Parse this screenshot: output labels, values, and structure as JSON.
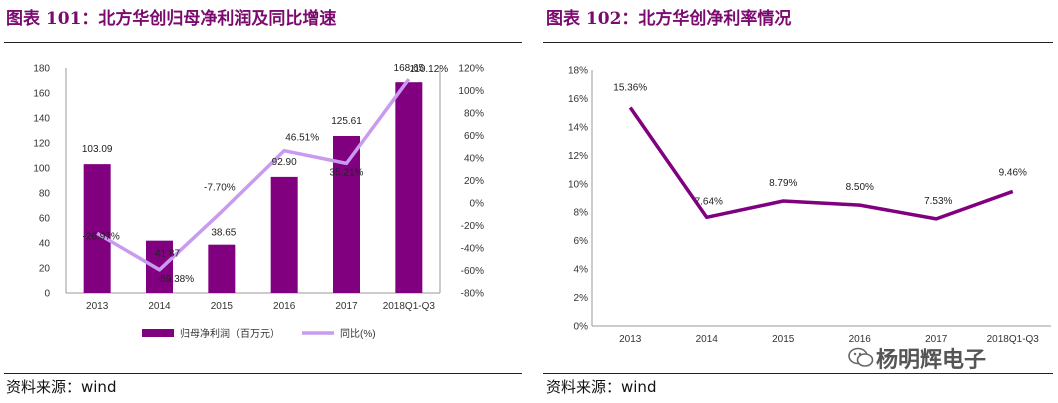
{
  "left": {
    "title": "图表 101：北方华创归母净利润及同比增速",
    "source": "资料来源：wind"
  },
  "right": {
    "title": "图表 102：北方华创净利率情况",
    "source": "资料来源：wind"
  },
  "watermark": "杨明辉电子",
  "colors": {
    "bar": "#800080",
    "yoy_line": "#c89bf0",
    "margin_line": "#800080",
    "title": "#7a0a6e"
  },
  "chart_data": [
    {
      "type": "bar",
      "categories": [
        "2013",
        "2014",
        "2015",
        "2016",
        "2017",
        "2018Q1-Q3"
      ],
      "series": [
        {
          "name": "归母净利润（百万元）",
          "type": "bar",
          "axis": "left",
          "values": [
            103.09,
            41.87,
            38.65,
            92.9,
            125.61,
            168.65
          ],
          "labels": [
            "103.09",
            "41.87",
            "38.65",
            "92.90",
            "125.61",
            "168.65"
          ]
        },
        {
          "name": "同比(%)",
          "type": "line",
          "axis": "right",
          "values": [
            -26.97,
            -59.38,
            -7.7,
            46.51,
            35.21,
            110.12
          ],
          "labels": [
            "-26.97%",
            "-59.38%",
            "-7.70%",
            "46.51%",
            "35.21%",
            "110.12%"
          ]
        }
      ],
      "y_left": {
        "min": 0,
        "max": 180,
        "step": 20,
        "ticks": [
          "0",
          "20",
          "40",
          "60",
          "80",
          "100",
          "120",
          "140",
          "160",
          "180"
        ]
      },
      "y_right": {
        "min": -80,
        "max": 120,
        "step": 20,
        "ticks": [
          "-80%",
          "-60%",
          "-40%",
          "-20%",
          "0%",
          "20%",
          "40%",
          "60%",
          "80%",
          "100%",
          "120%"
        ]
      },
      "grid": false,
      "legend": "bottom"
    },
    {
      "type": "line",
      "categories": [
        "2013",
        "2014",
        "2015",
        "2016",
        "2017",
        "2018Q1-Q3"
      ],
      "series": [
        {
          "values": [
            15.36,
            7.64,
            8.79,
            8.5,
            7.53,
            9.46
          ],
          "labels": [
            "15.36%",
            "7.64%",
            "8.79%",
            "8.50%",
            "7.53%",
            "9.46%"
          ]
        }
      ],
      "y": {
        "min": 0,
        "max": 18,
        "step": 2,
        "ticks": [
          "0%",
          "2%",
          "4%",
          "6%",
          "8%",
          "10%",
          "12%",
          "14%",
          "16%",
          "18%"
        ]
      },
      "grid": false,
      "legend": "none"
    }
  ]
}
